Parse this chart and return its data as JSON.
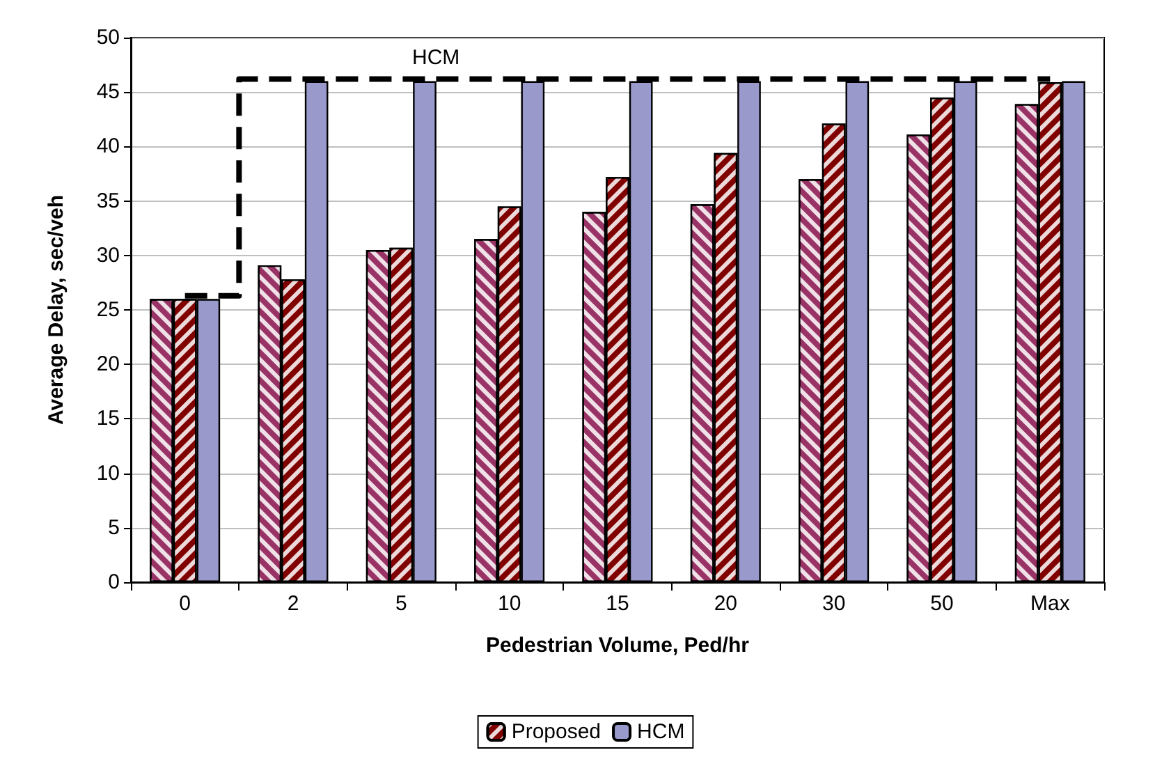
{
  "chart_data": {
    "type": "bar",
    "xlabel": "Pedestrian Volume, Ped/hr",
    "ylabel": "Average Delay, sec/veh",
    "categories": [
      "0",
      "2",
      "5",
      "10",
      "15",
      "20",
      "30",
      "50",
      "Max"
    ],
    "series": [
      {
        "color": "#993366",
        "values": [
          26,
          29.1,
          30.5,
          31.5,
          34,
          34.7,
          37,
          41.1,
          43.9
        ]
      },
      {
        "name": "Proposed",
        "color": "#800000",
        "values": [
          26,
          27.8,
          30.7,
          34.5,
          37.2,
          39.4,
          42.1,
          44.5,
          45.9
        ]
      },
      {
        "name": "HCM",
        "color": "#9999cc",
        "values": [
          26,
          46,
          46,
          46,
          46,
          46,
          46,
          46,
          46
        ]
      },
      {
        "type": "step",
        "color": "#000000",
        "line_style": "dashed",
        "values": [
          26.3,
          46.2,
          46.2,
          46.2,
          46.2,
          46.2,
          46.2,
          46.2,
          46.2
        ]
      }
    ],
    "annotations": [
      "HCM"
    ],
    "ylim": [
      0,
      50
    ],
    "yticks": [
      0,
      5,
      10,
      15,
      20,
      25,
      30,
      35,
      40,
      45,
      50
    ],
    "grid": "y",
    "legend": "bottom",
    "marker": "none"
  }
}
